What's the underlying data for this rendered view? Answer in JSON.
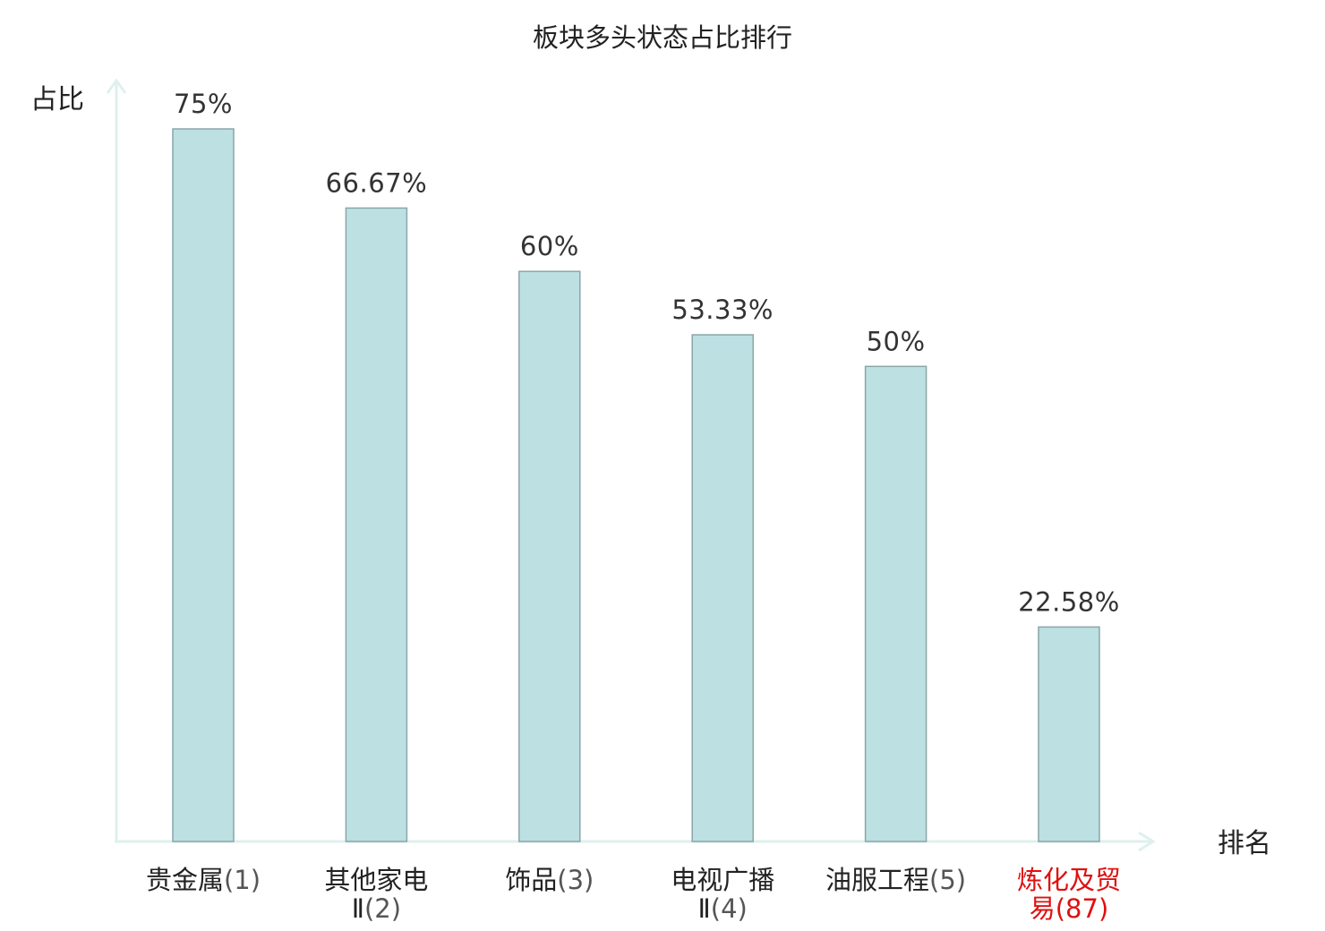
{
  "chart_data": {
    "type": "bar",
    "title": "板块多头状态占比排行",
    "ylabel": "占比",
    "xlabel": "排名",
    "ylim": [
      0,
      80
    ],
    "grid": false,
    "legend": "none",
    "bar_color": "#bde0e3",
    "bar_stroke": "#8aa6a8",
    "axis_color": "#dff0ee",
    "highlight_color": "#e01010",
    "categories": [
      {
        "name_lines": [
          "贵金属"
        ],
        "rank": "(1)",
        "highlight": false
      },
      {
        "name_lines": [
          "其他家电",
          "Ⅱ"
        ],
        "rank": "(2)",
        "highlight": false
      },
      {
        "name_lines": [
          "饰品"
        ],
        "rank": "(3)",
        "highlight": false
      },
      {
        "name_lines": [
          "电视广播",
          "Ⅱ"
        ],
        "rank": "(4)",
        "highlight": false
      },
      {
        "name_lines": [
          "油服工程"
        ],
        "rank": "(5)",
        "highlight": false
      },
      {
        "name_lines": [
          "炼化及贸",
          "易"
        ],
        "rank": "(87)",
        "highlight": true
      }
    ],
    "values": [
      75,
      66.67,
      60,
      53.33,
      50,
      22.58
    ],
    "value_labels": [
      "75%",
      "66.67%",
      "60%",
      "53.33%",
      "50%",
      "22.58%"
    ]
  }
}
